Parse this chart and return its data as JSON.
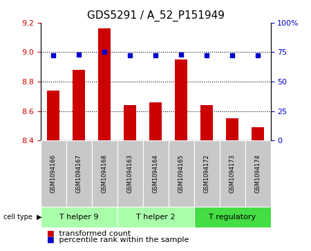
{
  "title": "GDS5291 / A_52_P151949",
  "samples": [
    "GSM1094166",
    "GSM1094167",
    "GSM1094168",
    "GSM1094163",
    "GSM1094164",
    "GSM1094165",
    "GSM1094172",
    "GSM1094173",
    "GSM1094174"
  ],
  "transformed_counts": [
    8.74,
    8.88,
    9.16,
    8.64,
    8.66,
    8.95,
    8.64,
    8.55,
    8.49
  ],
  "percentile_ranks": [
    72,
    73,
    75,
    72,
    72,
    73,
    72,
    72,
    72
  ],
  "ylim_left": [
    8.4,
    9.2
  ],
  "ylim_right": [
    0,
    100
  ],
  "yticks_left": [
    8.4,
    8.6,
    8.8,
    9.0,
    9.2
  ],
  "yticks_right": [
    0,
    25,
    50,
    75,
    100
  ],
  "ytick_labels_right": [
    "0",
    "25",
    "50",
    "75",
    "100%"
  ],
  "grid_lines": [
    8.6,
    8.8,
    9.0
  ],
  "cell_groups": [
    {
      "label": "T helper 9",
      "indices": [
        0,
        1,
        2
      ],
      "color": "#aaffaa"
    },
    {
      "label": "T helper 2",
      "indices": [
        3,
        4,
        5
      ],
      "color": "#aaffaa"
    },
    {
      "label": "T regulatory",
      "indices": [
        6,
        7,
        8
      ],
      "color": "#44dd44"
    }
  ],
  "bar_color": "#CC0000",
  "scatter_color": "#0000CC",
  "bg_color": "#FFFFFF",
  "tick_area_color": "#C8C8C8",
  "tick_label_color_left": "#CC0000",
  "tick_label_color_right": "#0000CC",
  "title_fontsize": 11,
  "tick_fontsize": 8,
  "label_fontsize": 7,
  "legend_fontsize": 8,
  "bar_width": 0.5,
  "cell_type_label": "cell type",
  "legend_items": [
    "transformed count",
    "percentile rank within the sample"
  ]
}
